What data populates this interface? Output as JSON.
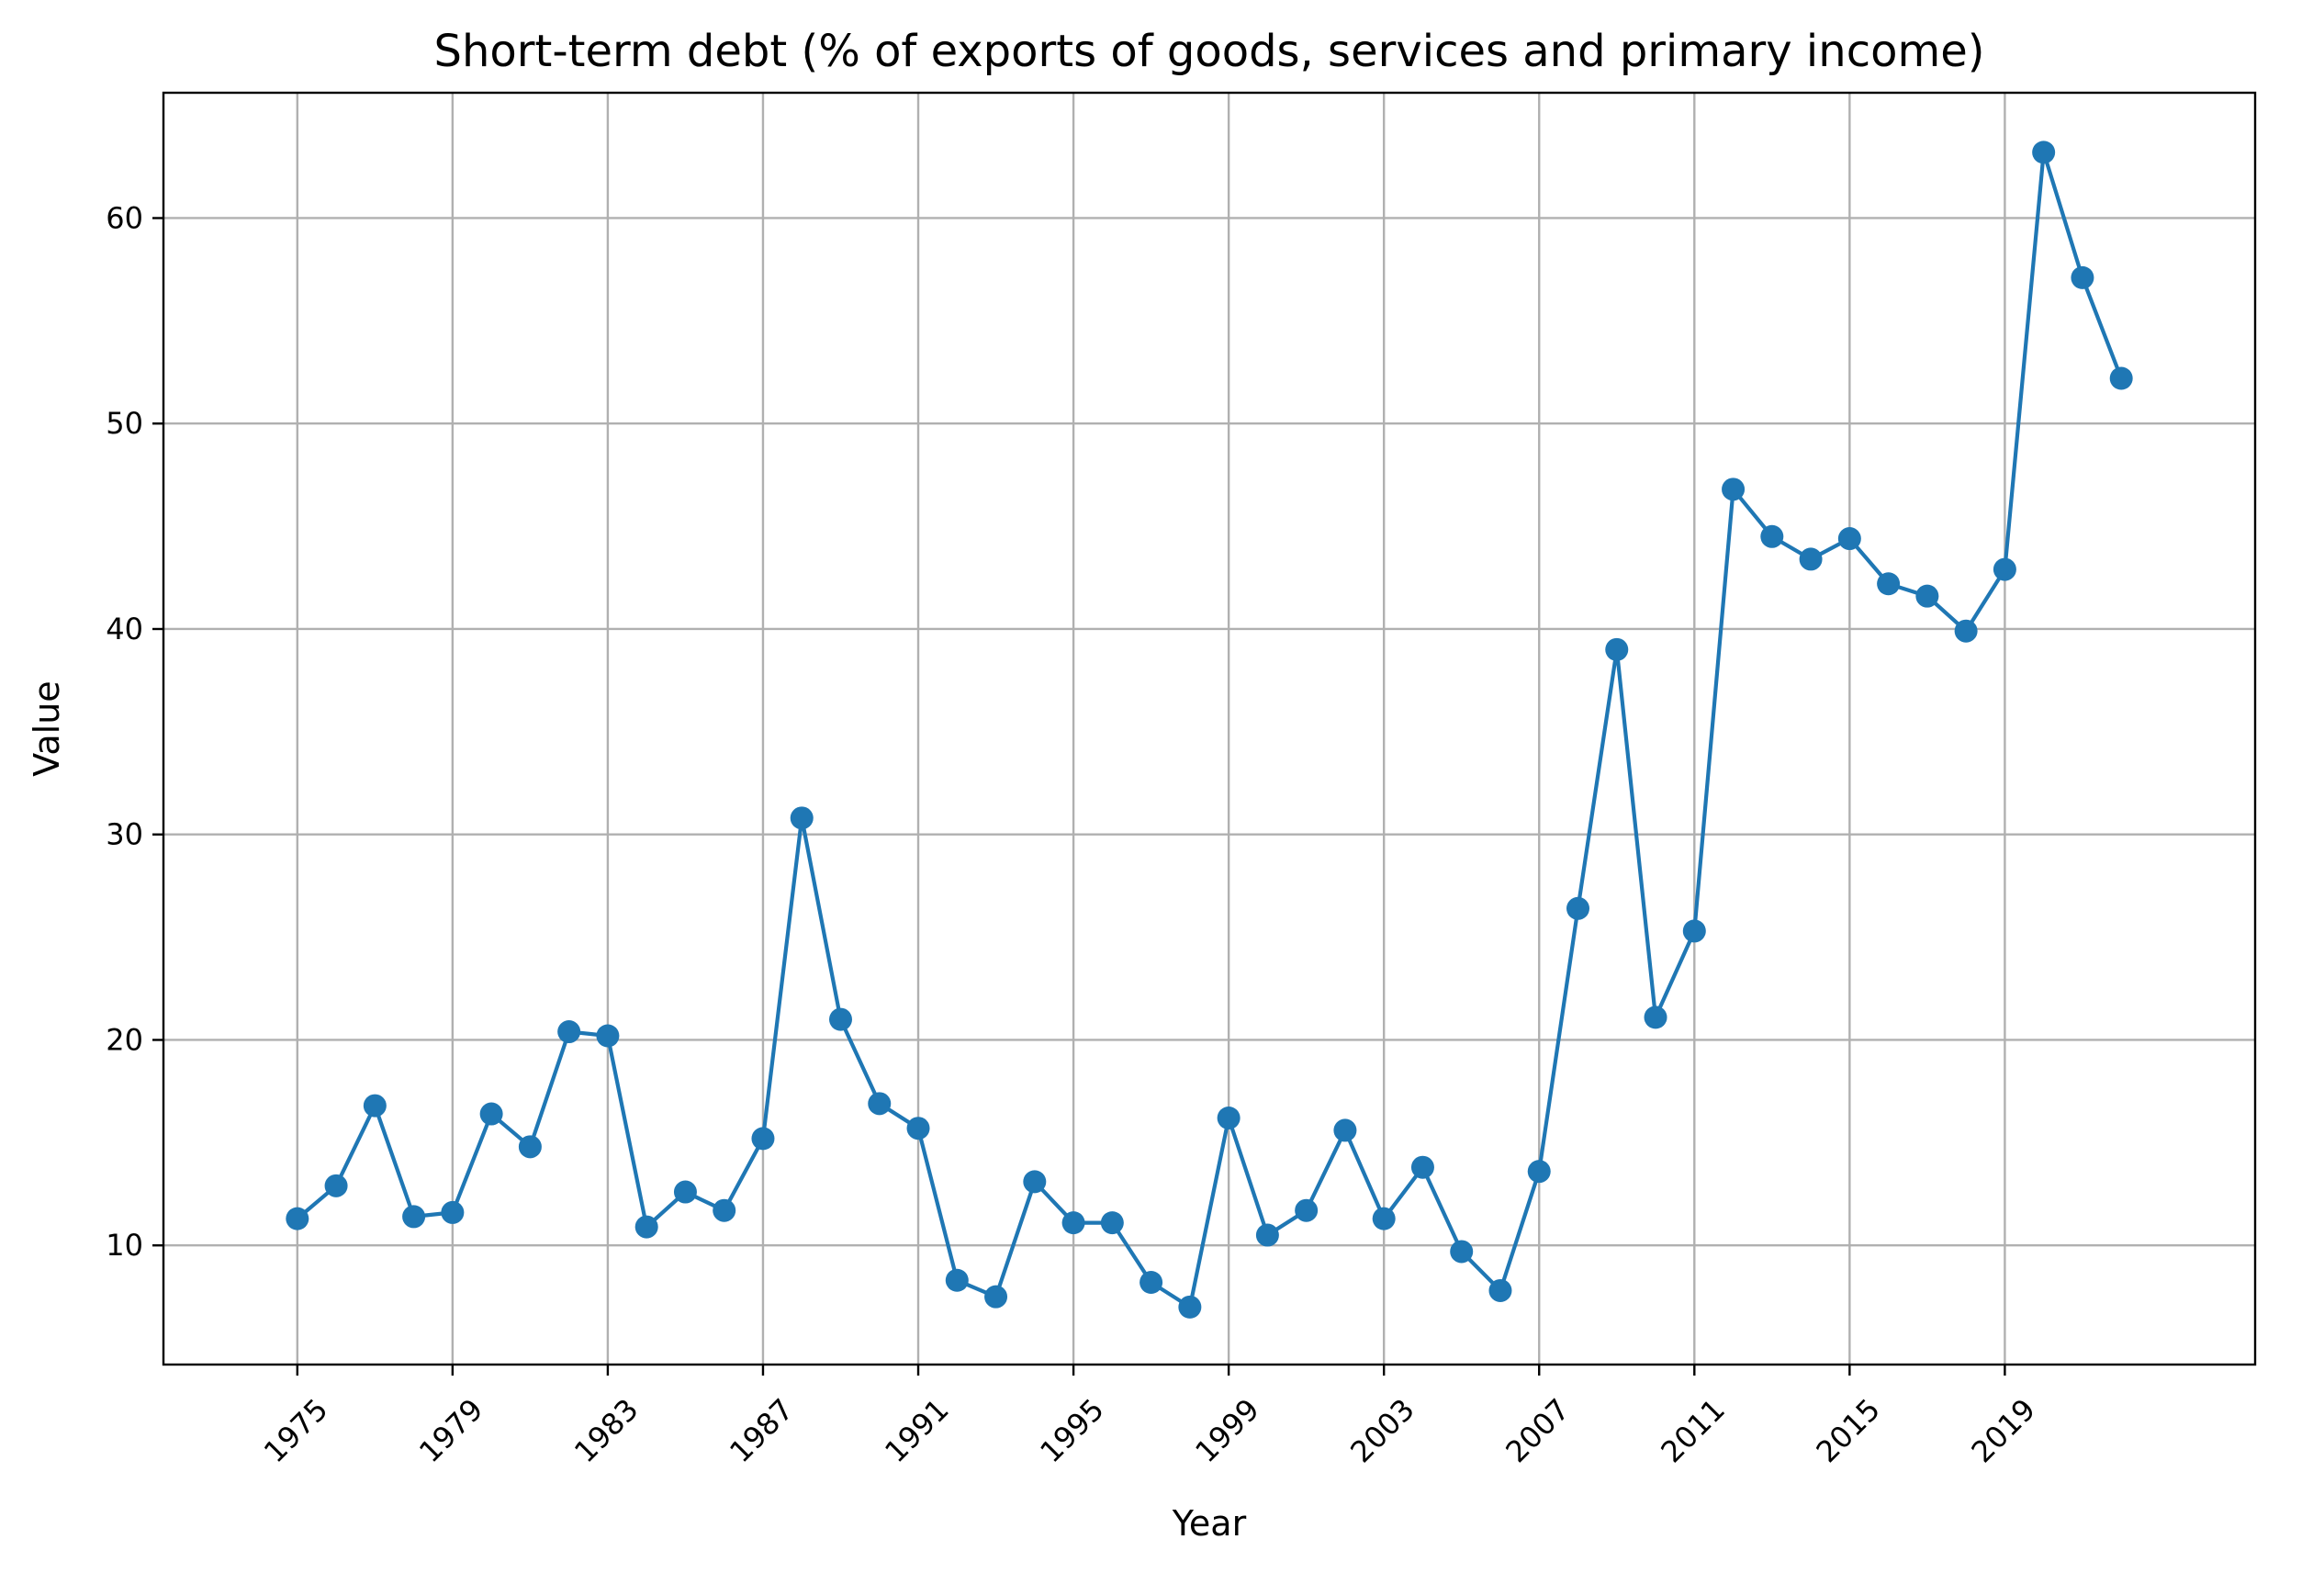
{
  "chart_data": {
    "type": "line",
    "title": "Short-term debt (% of exports of goods, services and primary income)",
    "xlabel": "Year",
    "ylabel": "Value",
    "xlim": [
      1971.55,
      2025.45
    ],
    "ylim": [
      4.2,
      66.1
    ],
    "grid": true,
    "legend": "none",
    "line_color": "#1f77b4",
    "marker": "circle",
    "x_ticks": [
      1975,
      1979,
      1983,
      1987,
      1991,
      1995,
      1999,
      2003,
      2007,
      2011,
      2015,
      2019
    ],
    "y_ticks": [
      10,
      20,
      30,
      40,
      50,
      60
    ],
    "x": [
      1975,
      1976,
      1977,
      1978,
      1979,
      1980,
      1981,
      1982,
      1983,
      1984,
      1985,
      1986,
      1987,
      1988,
      1989,
      1990,
      1991,
      1992,
      1993,
      1994,
      1995,
      1996,
      1997,
      1998,
      1999,
      2000,
      2001,
      2002,
      2003,
      2004,
      2005,
      2006,
      2007,
      2008,
      2009,
      2010,
      2011,
      2012,
      2013,
      2014,
      2015,
      2016,
      2017,
      2018,
      2019,
      2020,
      2021,
      2022
    ],
    "y": [
      11.3,
      12.9,
      16.8,
      11.4,
      11.6,
      16.4,
      14.8,
      20.4,
      20.2,
      10.9,
      12.6,
      11.7,
      15.2,
      30.8,
      21.0,
      16.9,
      15.7,
      8.3,
      7.5,
      13.1,
      11.1,
      11.1,
      8.2,
      7.0,
      16.2,
      10.5,
      11.7,
      15.6,
      11.3,
      13.8,
      9.7,
      7.8,
      13.6,
      26.4,
      39.0,
      21.1,
      25.3,
      46.8,
      44.5,
      43.4,
      44.4,
      42.2,
      41.6,
      39.9,
      42.9,
      63.2,
      57.1,
      52.2
    ]
  }
}
